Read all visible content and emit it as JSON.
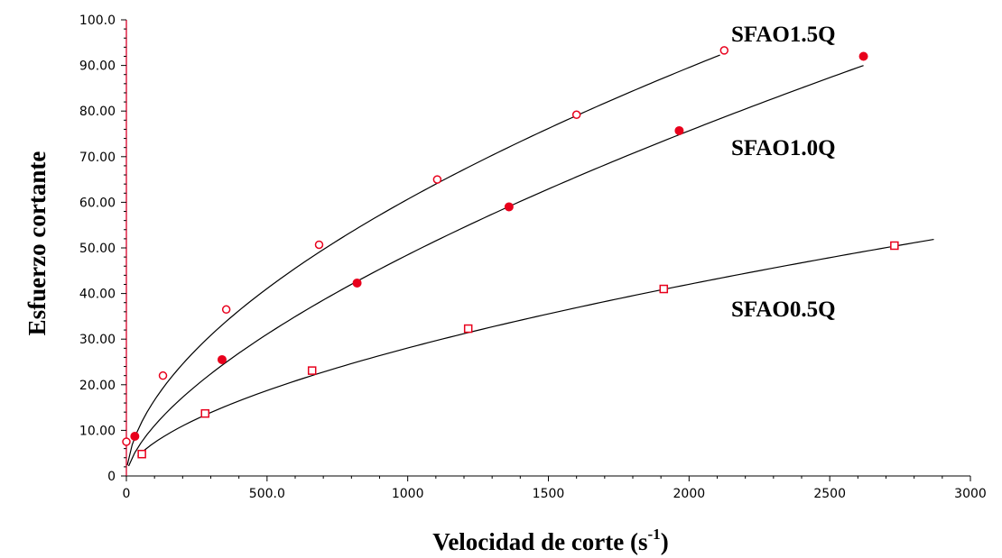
{
  "chart_data": {
    "type": "scatter",
    "title": "",
    "xlabel": "Velocidad de corte (s",
    "xlabel_sup": "-1",
    "xlabel_close": ")",
    "ylabel": "Esfuerzo cortante",
    "xlim": [
      0,
      3000
    ],
    "ylim": [
      0,
      100
    ],
    "grid": false,
    "legend": "inline labels",
    "x_ticks": [
      {
        "value": 0,
        "label": "0"
      },
      {
        "value": 500,
        "label": "500.0"
      },
      {
        "value": 1000,
        "label": "1000"
      },
      {
        "value": 1500,
        "label": "1500"
      },
      {
        "value": 2000,
        "label": "2000"
      },
      {
        "value": 2500,
        "label": "2500"
      },
      {
        "value": 3000,
        "label": "3000"
      }
    ],
    "y_ticks": [
      {
        "value": 0,
        "label": "0"
      },
      {
        "value": 10,
        "label": "10.00"
      },
      {
        "value": 20,
        "label": "20.00"
      },
      {
        "value": 30,
        "label": "30.00"
      },
      {
        "value": 40,
        "label": "40.00"
      },
      {
        "value": 50,
        "label": "50.00"
      },
      {
        "value": 60,
        "label": "60.00"
      },
      {
        "value": 70,
        "label": "70.00"
      },
      {
        "value": 80,
        "label": "80.00"
      },
      {
        "value": 90,
        "label": "90.00"
      },
      {
        "value": 100,
        "label": "100.0"
      }
    ],
    "series": [
      {
        "name": "SFAO1.5Q",
        "marker": "circle-open",
        "color": "#e8001c",
        "x": [
          0,
          130,
          355,
          685,
          1105,
          1600,
          2125
        ],
        "y": [
          7.5,
          22,
          36.5,
          50.7,
          65,
          79.2,
          93.3
        ],
        "fit": {
          "k": 1.25,
          "n": 0.562,
          "x_min": 3,
          "x_max": 2110
        }
      },
      {
        "name": "SFAO1.0Q",
        "marker": "circle-filled",
        "color": "#e8001c",
        "x": [
          30,
          340,
          820,
          1360,
          1965,
          2620
        ],
        "y": [
          8.7,
          25.5,
          42.3,
          59,
          75.7,
          92
        ],
        "fit": {
          "k": 0.575,
          "n": 0.642,
          "x_min": 8,
          "x_max": 2620
        }
      },
      {
        "name": "SFAO0.5Q",
        "marker": "square-open",
        "color": "#e8001c",
        "x": [
          55,
          280,
          660,
          1215,
          1910,
          2730
        ],
        "y": [
          4.8,
          13.7,
          23.1,
          32.3,
          41,
          50.5
        ],
        "fit": {
          "k": 0.5,
          "n": 0.583,
          "x_min": 40,
          "x_max": 2870
        }
      }
    ]
  }
}
